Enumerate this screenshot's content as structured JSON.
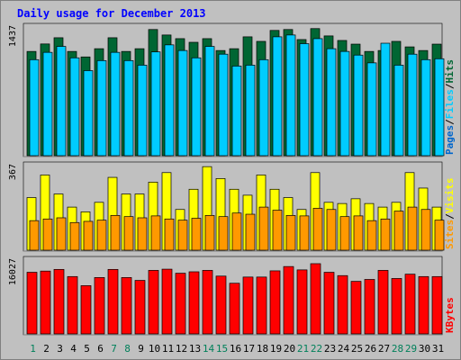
{
  "chart_data": {
    "type": "bar",
    "title": "Daily usage for December 2013",
    "categories": [
      "1",
      "2",
      "3",
      "4",
      "5",
      "6",
      "7",
      "8",
      "9",
      "10",
      "11",
      "12",
      "13",
      "14",
      "15",
      "16",
      "17",
      "18",
      "19",
      "20",
      "21",
      "22",
      "23",
      "24",
      "25",
      "26",
      "27",
      "28",
      "29",
      "30",
      "31"
    ],
    "weekend_days": [
      "1",
      "7",
      "8",
      "14",
      "15",
      "21",
      "22",
      "28",
      "29"
    ],
    "panels": [
      {
        "id": "hits",
        "max_label": "1437",
        "ylim": [
          0,
          1437
        ],
        "legend": [
          "Pages",
          "Files",
          "Hits"
        ],
        "series": [
          {
            "name": "Hits",
            "color": "#006633",
            "values": [
              1150,
              1232,
              1300,
              1150,
              1090,
              1180,
              1300,
              1150,
              1180,
              1390,
              1330,
              1290,
              1250,
              1290,
              1160,
              1180,
              1310,
              1260,
              1380,
              1390,
              1280,
              1400,
              1320,
              1270,
              1230,
              1150,
              1160,
              1260,
              1200,
              1160,
              1230
            ]
          },
          {
            "name": "Files",
            "color": "#00ccff",
            "values": [
              1060,
              1140,
              1205,
              1080,
              940,
              1050,
              1140,
              1050,
              1000,
              1145,
              1222,
              1160,
              1080,
              1205,
              1120,
              990,
              1000,
              1060,
              1310,
              1330,
              1235,
              1290,
              1180,
              1150,
              1110,
              1025,
              1240,
              1000,
              1120,
              1060,
              1070
            ]
          },
          {
            "name": "Pages",
            "color": "#0066cc",
            "values": [
              0,
              0,
              0,
              0,
              0,
              0,
              0,
              0,
              0,
              0,
              0,
              0,
              0,
              0,
              0,
              0,
              0,
              0,
              0,
              0,
              0,
              0,
              0,
              0,
              0,
              0,
              0,
              0,
              0,
              0,
              0
            ]
          }
        ]
      },
      {
        "id": "visits",
        "max_label": "367",
        "ylim": [
          0,
          367
        ],
        "legend": [
          "Sites",
          "Visits"
        ],
        "series": [
          {
            "name": "Visits",
            "color": "#ffff00",
            "values": [
              225,
              320,
              240,
              185,
              165,
              205,
              310,
              240,
              240,
              290,
              330,
              175,
              260,
              355,
              305,
              260,
              235,
              320,
              260,
              225,
              175,
              330,
              205,
              200,
              220,
              200,
              185,
              205,
              330,
              265,
              185
            ]
          },
          {
            "name": "Sites",
            "color": "#ff9900",
            "values": [
              128,
              135,
              140,
              120,
              125,
              130,
              150,
              145,
              140,
              148,
              135,
              130,
              138,
              150,
              145,
              160,
              155,
              185,
              172,
              150,
              148,
              180,
              175,
              145,
              148,
              128,
              135,
              168,
              185,
              175,
              130
            ]
          }
        ]
      },
      {
        "id": "kbytes",
        "max_label": "16027",
        "ylim": [
          0,
          16027
        ],
        "legend": [
          "KBytes"
        ],
        "series": [
          {
            "name": "KBytes",
            "color": "#ff0000",
            "values": [
              13100,
              13350,
              13700,
              12200,
              10300,
              12000,
              13700,
              12000,
              11400,
              13500,
              13750,
              12900,
              13200,
              13500,
              12300,
              10800,
              12100,
              12100,
              13400,
              14300,
              13600,
              14900,
              13100,
              12400,
              11200,
              11600,
              13500,
              11800,
              12700,
              12200,
              12200
            ]
          }
        ]
      }
    ]
  }
}
